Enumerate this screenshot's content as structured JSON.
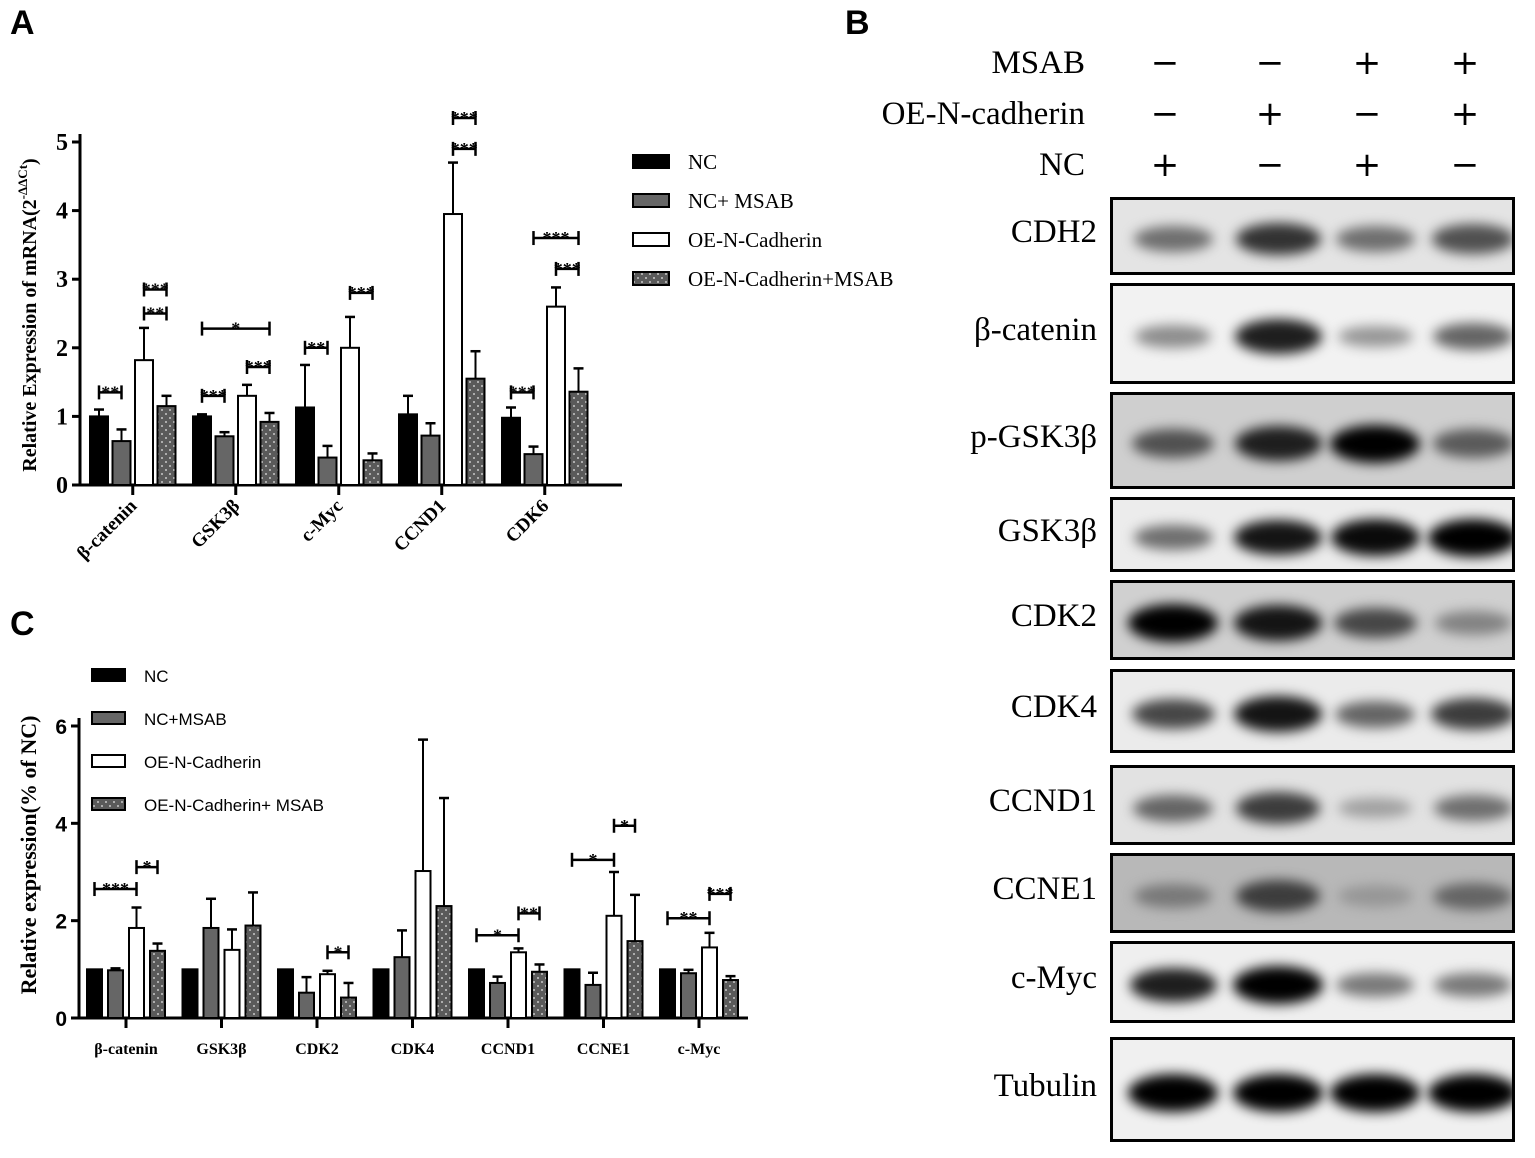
{
  "panels": {
    "A": "A",
    "B": "B",
    "C": "C"
  },
  "colors": {
    "nc": "#000000",
    "nc_msab": "#666666",
    "oe": "#ffffff",
    "oe_msab": "#5a5a5a",
    "axis": "#000000"
  },
  "chart_data": [
    {
      "id": "A",
      "type": "bar",
      "title": "",
      "xlabel": "",
      "ylabel": "Relative Expression of mRNA(2^-ΔΔCt)",
      "ylabel_main": "Relative Expression of mRNA(2",
      "ylabel_sup": "-ΔΔCt",
      "ylabel_close": ")",
      "ylim": [
        0,
        5
      ],
      "yticks": [
        "0",
        "1",
        "2",
        "3",
        "4",
        "5"
      ],
      "grid": false,
      "legend_position": "right",
      "categories": [
        "β-catenin",
        "GSK3β",
        "c-Myc",
        "CCND1",
        "CDK6"
      ],
      "series": [
        {
          "name": "NC",
          "values": [
            1.0,
            1.0,
            1.13,
            1.03,
            0.98
          ],
          "errors": [
            0.1,
            0.03,
            0.62,
            0.27,
            0.15
          ]
        },
        {
          "name": "NC+ MSAB",
          "values": [
            0.64,
            0.71,
            0.4,
            0.72,
            0.45
          ],
          "errors": [
            0.17,
            0.06,
            0.17,
            0.18,
            0.11
          ]
        },
        {
          "name": "OE-N-Cadherin",
          "values": [
            1.82,
            1.3,
            2.0,
            3.95,
            2.6
          ],
          "errors": [
            0.47,
            0.16,
            0.45,
            0.75,
            0.28
          ]
        },
        {
          "name": "OE-N-Cadherin+MSAB",
          "values": [
            1.15,
            0.92,
            0.36,
            1.55,
            1.36
          ],
          "errors": [
            0.15,
            0.13,
            0.1,
            0.4,
            0.34
          ]
        }
      ],
      "significance": [
        {
          "category": 0,
          "from": 0,
          "to": 1,
          "y": 1.35,
          "label": "**"
        },
        {
          "category": 0,
          "from": 2,
          "to": 3,
          "y": 2.85,
          "label": "***"
        },
        {
          "category": 0,
          "from": 2,
          "to": 3,
          "y": 2.5,
          "label": "**"
        },
        {
          "category": 1,
          "from": 0,
          "to": 1,
          "y": 1.3,
          "label": "***"
        },
        {
          "category": 1,
          "from": 0,
          "to": 3,
          "y": 2.28,
          "label": "*"
        },
        {
          "category": 1,
          "from": 2,
          "to": 3,
          "y": 1.72,
          "label": "***"
        },
        {
          "category": 2,
          "from": 0,
          "to": 1,
          "y": 2.0,
          "label": "**"
        },
        {
          "category": 2,
          "from": 2,
          "to": 3,
          "y": 2.8,
          "label": "***"
        },
        {
          "category": 3,
          "from": 2,
          "to": 3,
          "y": 5.35,
          "label": "***"
        },
        {
          "category": 3,
          "from": 2,
          "to": 3,
          "y": 4.9,
          "label": "***"
        },
        {
          "category": 4,
          "from": 0,
          "to": 1,
          "y": 1.35,
          "label": "***"
        },
        {
          "category": 4,
          "from": 1,
          "to": 3,
          "y": 3.6,
          "label": "***"
        },
        {
          "category": 4,
          "from": 2,
          "to": 3,
          "y": 3.15,
          "label": "***"
        }
      ]
    },
    {
      "id": "C",
      "type": "bar",
      "title": "",
      "xlabel": "",
      "ylabel": "Relative expression(% of NC)",
      "ylim": [
        0,
        6
      ],
      "yticks": [
        "0",
        "2",
        "4",
        "6"
      ],
      "grid": false,
      "legend_position": "top-left",
      "categories": [
        "β-catenin",
        "GSK3β",
        "CDK2",
        "CDK4",
        "CCND1",
        "CCNE1",
        "c-Myc"
      ],
      "series": [
        {
          "name": "NC",
          "values": [
            1,
            1,
            1,
            1,
            1,
            1,
            1
          ],
          "errors": [
            0,
            0,
            0,
            0,
            0,
            0,
            0
          ]
        },
        {
          "name": "NC+MSAB",
          "values": [
            0.98,
            1.85,
            0.52,
            1.25,
            0.72,
            0.68,
            0.92
          ],
          "errors": [
            0.04,
            0.6,
            0.32,
            0.55,
            0.13,
            0.25,
            0.07
          ]
        },
        {
          "name": "OE-N-Cadherin",
          "values": [
            1.85,
            1.4,
            0.9,
            3.02,
            1.35,
            2.1,
            1.45
          ],
          "errors": [
            0.42,
            0.42,
            0.07,
            2.7,
            0.08,
            0.9,
            0.3
          ]
        },
        {
          "name": "OE-N-Cadherin+ MSAB",
          "values": [
            1.38,
            1.9,
            0.42,
            2.3,
            0.95,
            1.58,
            0.78
          ],
          "errors": [
            0.15,
            0.68,
            0.3,
            2.22,
            0.15,
            0.95,
            0.08
          ]
        }
      ],
      "significance": [
        {
          "category": 0,
          "from": 0,
          "to": 2,
          "y": 2.65,
          "label": "***"
        },
        {
          "category": 0,
          "from": 2,
          "to": 3,
          "y": 3.1,
          "label": "*"
        },
        {
          "category": 2,
          "from": 2,
          "to": 3,
          "y": 1.35,
          "label": "*"
        },
        {
          "category": 4,
          "from": 0,
          "to": 2,
          "y": 1.7,
          "label": "*"
        },
        {
          "category": 4,
          "from": 2,
          "to": 3,
          "y": 2.15,
          "label": "**"
        },
        {
          "category": 5,
          "from": 0,
          "to": 2,
          "y": 3.25,
          "label": "*"
        },
        {
          "category": 5,
          "from": 2,
          "to": 3,
          "y": 3.95,
          "label": "*"
        },
        {
          "category": 6,
          "from": 0,
          "to": 2,
          "y": 2.05,
          "label": "**"
        },
        {
          "category": 6,
          "from": 2,
          "to": 3,
          "y": 2.55,
          "label": "***"
        }
      ]
    }
  ],
  "western_blot": {
    "conditions": [
      {
        "label": "MSAB",
        "signs": [
          "−",
          "−",
          "+",
          "+"
        ]
      },
      {
        "label": "OE-N-cadherin",
        "signs": [
          "−",
          "+",
          "−",
          "+"
        ]
      },
      {
        "label": "NC",
        "signs": [
          "+",
          "−",
          "+",
          "−"
        ]
      }
    ],
    "blots": [
      {
        "label": "CDH2",
        "intensities": [
          0.45,
          0.75,
          0.45,
          0.6
        ],
        "bg": "#e4e4e4"
      },
      {
        "label": "β-catenin",
        "intensities": [
          0.3,
          0.85,
          0.25,
          0.5
        ],
        "bg": "#f2f2f2"
      },
      {
        "label": "p-GSK3β",
        "intensities": [
          0.6,
          0.85,
          1.0,
          0.55
        ],
        "bg": "#cfcfcf"
      },
      {
        "label": "GSK3β",
        "intensities": [
          0.45,
          0.9,
          0.95,
          1.0
        ],
        "bg": "#ececec"
      },
      {
        "label": "CDK2",
        "intensities": [
          1.0,
          0.9,
          0.65,
          0.35
        ],
        "bg": "#d0d0d0"
      },
      {
        "label": "CDK4",
        "intensities": [
          0.65,
          0.9,
          0.5,
          0.7
        ],
        "bg": "#ebebeb"
      },
      {
        "label": "CCND1",
        "intensities": [
          0.5,
          0.7,
          0.2,
          0.45
        ],
        "bg": "#e2e2e2"
      },
      {
        "label": "CCNE1",
        "intensities": [
          0.4,
          0.7,
          0.25,
          0.5
        ],
        "bg": "#b8b8b8"
      },
      {
        "label": "c-Myc",
        "intensities": [
          0.85,
          1.0,
          0.4,
          0.4
        ],
        "bg": "#efefef"
      },
      {
        "label": "Tubulin",
        "intensities": [
          1.0,
          1.0,
          1.0,
          1.0
        ],
        "bg": "#f0f0f0"
      }
    ]
  }
}
